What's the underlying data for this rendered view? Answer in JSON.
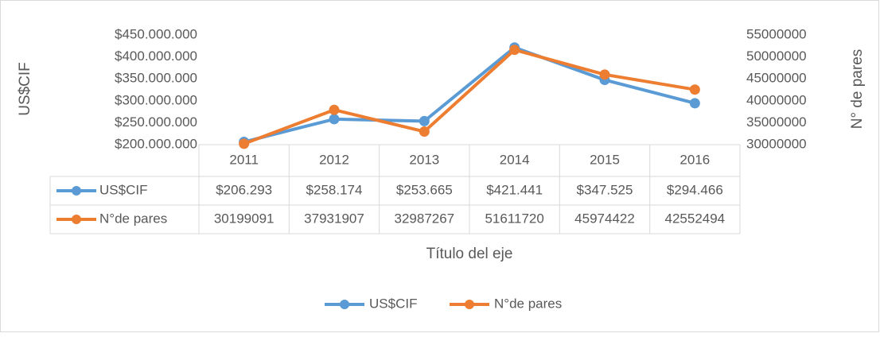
{
  "chart_data": {
    "type": "line",
    "y_label": "US$CIF",
    "y2_label": "N° de pares",
    "x_label": "Título del eje",
    "categories": [
      "2011",
      "2012",
      "2013",
      "2014",
      "2015",
      "2016"
    ],
    "series": [
      {
        "name": "US$CIF",
        "color": "#5b9bd5",
        "values": [
          206293000,
          258174000,
          253665000,
          421441000,
          347525000,
          294466000
        ],
        "value_labels": [
          "$206.293",
          "$258.174",
          "$253.665",
          "$421.441",
          "$347.525",
          "$294.466"
        ]
      },
      {
        "name": "N°de pares",
        "color": "#ed7d31",
        "axis": "y2",
        "values": [
          30199091,
          37931907,
          32987267,
          51611720,
          45974422,
          42552494
        ]
      }
    ],
    "ylim": [
      200000000,
      450000000
    ],
    "yticks": [
      {
        "value": 200000000,
        "label": "$200.000.000"
      },
      {
        "value": 250000000,
        "label": "$250.000.000"
      },
      {
        "value": 300000000,
        "label": "$300.000.000"
      },
      {
        "value": 350000000,
        "label": "$350.000.000"
      },
      {
        "value": 400000000,
        "label": "$400.000.000"
      },
      {
        "value": 450000000,
        "label": "$450.000.000"
      }
    ],
    "y2lim": [
      30000000,
      55000000
    ],
    "y2ticks": [
      30000000,
      35000000,
      40000000,
      45000000,
      50000000,
      55000000
    ],
    "grid": false,
    "legend": "bottom"
  }
}
